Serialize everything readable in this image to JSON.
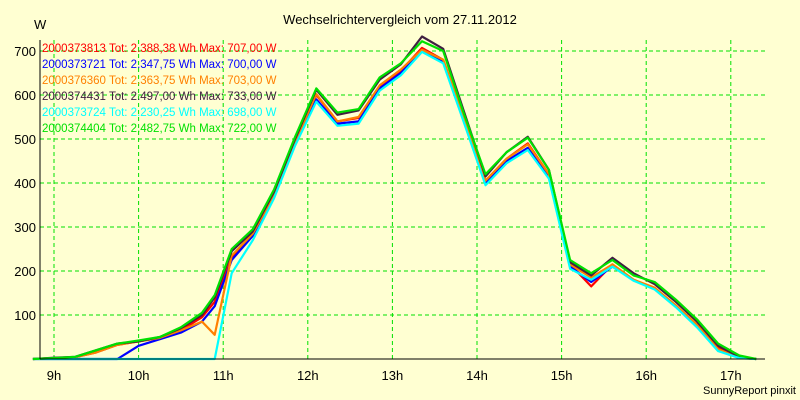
{
  "chart_data": {
    "type": "line",
    "title": "Wechselrichtervergleich vom 27.11.2012",
    "ylabel": "W",
    "xlabel": "",
    "footer": "SunnyReport pinxit",
    "ylim": [
      0,
      740
    ],
    "xlim": [
      8.6,
      17.6
    ],
    "yticks": [
      100,
      200,
      300,
      400,
      500,
      600,
      700
    ],
    "xticks": [
      9,
      10,
      11,
      12,
      13,
      14,
      15,
      16,
      17
    ],
    "xtick_labels": [
      "9h",
      "10h",
      "11h",
      "12h",
      "13h",
      "14h",
      "15h",
      "16h",
      "17h"
    ],
    "grid": true,
    "legend_position": "top-left",
    "x": [
      8.75,
      9.0,
      9.25,
      9.5,
      9.75,
      10.0,
      10.25,
      10.5,
      10.75,
      10.9,
      11.1,
      11.35,
      11.6,
      11.85,
      12.1,
      12.35,
      12.6,
      12.85,
      13.1,
      13.35,
      13.6,
      13.85,
      14.1,
      14.35,
      14.6,
      14.85,
      15.1,
      15.35,
      15.6,
      15.85,
      16.1,
      16.35,
      16.6,
      16.85,
      17.1,
      17.3
    ],
    "series": [
      {
        "name": "2000373813 Tot: 2.388,38 Wh Max: 707,00 W",
        "color": "#ff0000",
        "values": [
          0,
          2,
          4,
          15,
          32,
          40,
          48,
          65,
          95,
          130,
          230,
          280,
          370,
          490,
          600,
          540,
          548,
          620,
          655,
          707,
          680,
          545,
          405,
          455,
          490,
          420,
          215,
          165,
          215,
          180,
          160,
          120,
          75,
          25,
          3,
          0
        ]
      },
      {
        "name": "2000373721 Tot: 2.347,75 Wh Max: 700,00 W",
        "color": "#0000ff",
        "values": [
          0,
          0,
          0,
          0,
          0,
          30,
          45,
          60,
          85,
          120,
          225,
          280,
          370,
          490,
          590,
          535,
          540,
          615,
          650,
          700,
          675,
          540,
          400,
          450,
          480,
          415,
          210,
          175,
          210,
          180,
          160,
          120,
          75,
          20,
          3,
          0
        ]
      },
      {
        "name": "2000376360 Tot: 2.363,75 Wh Max: 703,00 W",
        "color": "#ff8000",
        "values": [
          0,
          2,
          4,
          15,
          32,
          40,
          48,
          65,
          85,
          55,
          235,
          285,
          372,
          492,
          602,
          540,
          550,
          622,
          658,
          703,
          680,
          548,
          405,
          455,
          488,
          420,
          215,
          185,
          215,
          180,
          162,
          122,
          78,
          22,
          3,
          0
        ]
      },
      {
        "name": "2000374431 Tot: 2.497,00 Wh Max: 733,00 W",
        "color": "#402040",
        "values": [
          0,
          3,
          5,
          20,
          35,
          40,
          50,
          70,
          100,
          140,
          245,
          290,
          380,
          500,
          612,
          555,
          565,
          635,
          670,
          733,
          705,
          560,
          415,
          470,
          505,
          430,
          220,
          190,
          230,
          195,
          170,
          130,
          85,
          30,
          5,
          0
        ]
      },
      {
        "name": "2000373724 Tot: 2.230,25 Wh Max: 698,00 W",
        "color": "#00ffff",
        "values": [
          0,
          0,
          0,
          0,
          0,
          0,
          0,
          0,
          0,
          0,
          195,
          270,
          365,
          485,
          585,
          530,
          535,
          610,
          645,
          698,
          672,
          535,
          395,
          445,
          475,
          410,
          205,
          180,
          210,
          178,
          158,
          118,
          72,
          18,
          2,
          0
        ]
      },
      {
        "name": "2000374404 Tot: 2.482,75 Wh Max: 722,00 W",
        "color": "#00e000",
        "values": [
          0,
          2,
          5,
          20,
          35,
          42,
          50,
          72,
          105,
          145,
          250,
          295,
          385,
          505,
          615,
          560,
          568,
          640,
          672,
          722,
          700,
          555,
          420,
          470,
          503,
          430,
          225,
          195,
          225,
          190,
          175,
          135,
          90,
          35,
          8,
          0
        ]
      }
    ]
  }
}
